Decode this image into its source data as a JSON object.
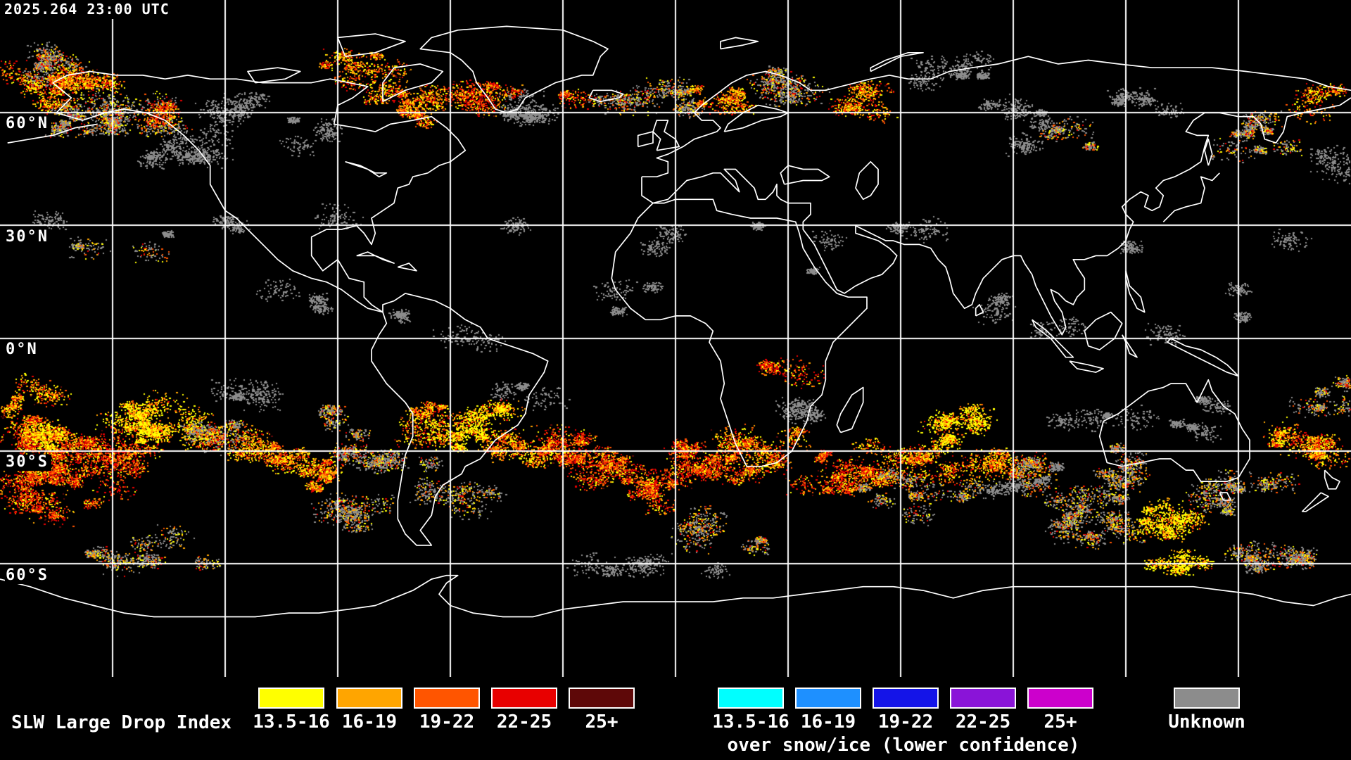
{
  "header": {
    "timestamp": "2025.264 23:00 UTC"
  },
  "map": {
    "background_color": "#000000",
    "graticule_color": "#FFFFFF",
    "coastline_color": "#FFFFFF",
    "lat_step_deg": 30,
    "lon_step_deg": 30,
    "latitude_labels": [
      {
        "label": "60°N",
        "lat": 60
      },
      {
        "label": "30°N",
        "lat": 30
      },
      {
        "label": "0°N",
        "lat": 0
      },
      {
        "label": "30°S",
        "lat": -30
      },
      {
        "label": "60°S",
        "lat": -60
      }
    ]
  },
  "legend": {
    "title": "SLW Large Drop Index",
    "bins": [
      "13.5-16",
      "16-19",
      "19-22",
      "22-25",
      "25+"
    ],
    "normal_colors": [
      "#FFFF00",
      "#FFA500",
      "#FF5500",
      "#E80000",
      "#5E0808"
    ],
    "snow_ice_colors": [
      "#00FFFF",
      "#1E90FF",
      "#1414E8",
      "#8A14D8",
      "#CC00CC"
    ],
    "snow_ice_caption": "over snow/ice (lower confidence)",
    "unknown_label": "Unknown",
    "unknown_color": "#8C8C8C"
  }
}
